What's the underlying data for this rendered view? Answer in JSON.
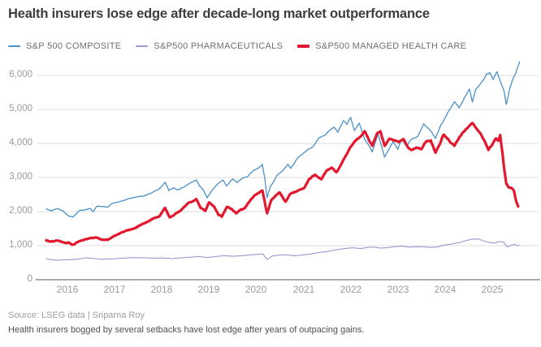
{
  "title": "Health insurers lose edge after decade-long market outperformance",
  "source": "Source: LSEG data | Sriparna Roy",
  "caption": "Health insurers bogged by several setbacks have lost edge after years of outpacing gains.",
  "colors": {
    "composite": "#4a90c9",
    "pharmaceuticals": "#9e94d2",
    "managed_health_care": "#e2192e",
    "gridline": "#dedede",
    "axis_line": "#a9a9a9",
    "title_text": "#3d3d3d",
    "legend_text": "#6f6f6f",
    "tick_text": "#9a9a9a"
  },
  "legend": [
    {
      "label": "S&P 500 COMPOSITE",
      "color": "#4a90c9",
      "thick": false
    },
    {
      "label": "S&P500 PHARMACEUTICALS",
      "color": "#9e94d2",
      "thick": false
    },
    {
      "label": "S&P500 MANAGED HEALTH CARE",
      "color": "#e2192e",
      "thick": true
    }
  ],
  "chart_data": {
    "type": "line",
    "title": "Health insurers lose edge after decade-long market outperformance",
    "xlabel": "",
    "ylabel": "",
    "grid": true,
    "legend_position": "top",
    "x_axis": {
      "tick_years": [
        2016,
        2017,
        2018,
        2019,
        2020,
        2021,
        2022,
        2023,
        2024,
        2025
      ],
      "tick_labels": [
        "2016",
        "2017",
        "2018",
        "2019",
        "2020",
        "2021",
        "2022",
        "2023",
        "2024",
        "2025"
      ],
      "range": [
        2015.45,
        2025.95
      ]
    },
    "y_axis": {
      "tick_values": [
        0,
        1000,
        2000,
        3000,
        4000,
        5000,
        6000
      ],
      "tick_labels": [
        "0",
        "1,000",
        "2,000",
        "3,000",
        "4,000",
        "5,000",
        "6,000"
      ],
      "range": [
        0,
        6550
      ]
    },
    "series": [
      {
        "name": "S&P 500 COMPOSITE",
        "color": "#4a90c9",
        "width": 1.3,
        "jitter": 22,
        "points": [
          [
            2015.55,
            2080
          ],
          [
            2015.65,
            2020
          ],
          [
            2015.78,
            2090
          ],
          [
            2015.9,
            2030
          ],
          [
            2016.02,
            1880
          ],
          [
            2016.12,
            1840
          ],
          [
            2016.25,
            2030
          ],
          [
            2016.4,
            2070
          ],
          [
            2016.48,
            2090
          ],
          [
            2016.55,
            2000
          ],
          [
            2016.63,
            2160
          ],
          [
            2016.75,
            2150
          ],
          [
            2016.85,
            2130
          ],
          [
            2016.95,
            2240
          ],
          [
            2017.1,
            2290
          ],
          [
            2017.3,
            2380
          ],
          [
            2017.5,
            2440
          ],
          [
            2017.65,
            2470
          ],
          [
            2017.8,
            2560
          ],
          [
            2017.95,
            2670
          ],
          [
            2018.07,
            2870
          ],
          [
            2018.15,
            2620
          ],
          [
            2018.25,
            2700
          ],
          [
            2018.35,
            2640
          ],
          [
            2018.5,
            2750
          ],
          [
            2018.62,
            2850
          ],
          [
            2018.73,
            2930
          ],
          [
            2018.8,
            2750
          ],
          [
            2018.88,
            2630
          ],
          [
            2018.96,
            2400
          ],
          [
            2019.05,
            2600
          ],
          [
            2019.18,
            2810
          ],
          [
            2019.3,
            2930
          ],
          [
            2019.37,
            2750
          ],
          [
            2019.5,
            2960
          ],
          [
            2019.6,
            2850
          ],
          [
            2019.7,
            2980
          ],
          [
            2019.82,
            3030
          ],
          [
            2019.95,
            3220
          ],
          [
            2020.05,
            3280
          ],
          [
            2020.13,
            3390
          ],
          [
            2020.18,
            2990
          ],
          [
            2020.23,
            2410
          ],
          [
            2020.3,
            2750
          ],
          [
            2020.38,
            2900
          ],
          [
            2020.45,
            3080
          ],
          [
            2020.55,
            3180
          ],
          [
            2020.67,
            3390
          ],
          [
            2020.73,
            3270
          ],
          [
            2020.8,
            3400
          ],
          [
            2020.88,
            3580
          ],
          [
            2021.0,
            3720
          ],
          [
            2021.1,
            3830
          ],
          [
            2021.2,
            3900
          ],
          [
            2021.33,
            4160
          ],
          [
            2021.45,
            4230
          ],
          [
            2021.55,
            4390
          ],
          [
            2021.65,
            4480
          ],
          [
            2021.73,
            4330
          ],
          [
            2021.85,
            4670
          ],
          [
            2021.92,
            4560
          ],
          [
            2022.0,
            4770
          ],
          [
            2022.08,
            4380
          ],
          [
            2022.18,
            4600
          ],
          [
            2022.3,
            4120
          ],
          [
            2022.4,
            3920
          ],
          [
            2022.46,
            3750
          ],
          [
            2022.58,
            4280
          ],
          [
            2022.72,
            3600
          ],
          [
            2022.82,
            3850
          ],
          [
            2022.9,
            4060
          ],
          [
            2023.0,
            3830
          ],
          [
            2023.08,
            4130
          ],
          [
            2023.18,
            3920
          ],
          [
            2023.3,
            4140
          ],
          [
            2023.42,
            4200
          ],
          [
            2023.55,
            4580
          ],
          [
            2023.68,
            4400
          ],
          [
            2023.8,
            4150
          ],
          [
            2023.9,
            4510
          ],
          [
            2024.0,
            4740
          ],
          [
            2024.1,
            5000
          ],
          [
            2024.2,
            5230
          ],
          [
            2024.3,
            5050
          ],
          [
            2024.42,
            5360
          ],
          [
            2024.52,
            5600
          ],
          [
            2024.58,
            5220
          ],
          [
            2024.65,
            5580
          ],
          [
            2024.72,
            5700
          ],
          [
            2024.8,
            5840
          ],
          [
            2024.88,
            6040
          ],
          [
            2024.95,
            6080
          ],
          [
            2025.02,
            5880
          ],
          [
            2025.1,
            6110
          ],
          [
            2025.18,
            5800
          ],
          [
            2025.25,
            5550
          ],
          [
            2025.3,
            5150
          ],
          [
            2025.38,
            5650
          ],
          [
            2025.45,
            5940
          ],
          [
            2025.5,
            6060
          ],
          [
            2025.55,
            6280
          ],
          [
            2025.58,
            6400
          ]
        ]
      },
      {
        "name": "S&P500 PHARMACEUTICALS",
        "color": "#9e94d2",
        "width": 1.1,
        "jitter": 7,
        "points": [
          [
            2015.55,
            620
          ],
          [
            2015.68,
            580
          ],
          [
            2015.8,
            575
          ],
          [
            2015.95,
            585
          ],
          [
            2016.1,
            590
          ],
          [
            2016.25,
            610
          ],
          [
            2016.4,
            645
          ],
          [
            2016.55,
            625
          ],
          [
            2016.7,
            600
          ],
          [
            2016.85,
            605
          ],
          [
            2017.0,
            615
          ],
          [
            2017.2,
            635
          ],
          [
            2017.4,
            650
          ],
          [
            2017.6,
            645
          ],
          [
            2017.8,
            630
          ],
          [
            2018.0,
            640
          ],
          [
            2018.2,
            620
          ],
          [
            2018.4,
            640
          ],
          [
            2018.6,
            660
          ],
          [
            2018.8,
            685
          ],
          [
            2018.95,
            650
          ],
          [
            2019.1,
            670
          ],
          [
            2019.3,
            705
          ],
          [
            2019.5,
            690
          ],
          [
            2019.7,
            705
          ],
          [
            2019.9,
            730
          ],
          [
            2020.05,
            745
          ],
          [
            2020.14,
            760
          ],
          [
            2020.23,
            590
          ],
          [
            2020.35,
            700
          ],
          [
            2020.5,
            725
          ],
          [
            2020.65,
            730
          ],
          [
            2020.8,
            705
          ],
          [
            2020.95,
            720
          ],
          [
            2021.1,
            745
          ],
          [
            2021.3,
            790
          ],
          [
            2021.5,
            830
          ],
          [
            2021.7,
            880
          ],
          [
            2021.9,
            920
          ],
          [
            2022.05,
            940
          ],
          [
            2022.2,
            915
          ],
          [
            2022.35,
            945
          ],
          [
            2022.5,
            955
          ],
          [
            2022.65,
            930
          ],
          [
            2022.8,
            945
          ],
          [
            2022.95,
            975
          ],
          [
            2023.1,
            985
          ],
          [
            2023.25,
            955
          ],
          [
            2023.4,
            970
          ],
          [
            2023.55,
            965
          ],
          [
            2023.7,
            945
          ],
          [
            2023.85,
            965
          ],
          [
            2024.0,
            1020
          ],
          [
            2024.15,
            1050
          ],
          [
            2024.3,
            1090
          ],
          [
            2024.45,
            1150
          ],
          [
            2024.58,
            1190
          ],
          [
            2024.7,
            1200
          ],
          [
            2024.82,
            1140
          ],
          [
            2024.95,
            1090
          ],
          [
            2025.05,
            1080
          ],
          [
            2025.15,
            1120
          ],
          [
            2025.25,
            1090
          ],
          [
            2025.32,
            960
          ],
          [
            2025.4,
            1010
          ],
          [
            2025.47,
            1045
          ],
          [
            2025.52,
            1000
          ],
          [
            2025.57,
            1020
          ]
        ]
      },
      {
        "name": "S&P500 MANAGED HEALTH CARE",
        "color": "#e2192e",
        "width": 3.2,
        "jitter": 26,
        "points": [
          [
            2015.55,
            1160
          ],
          [
            2015.65,
            1120
          ],
          [
            2015.78,
            1150
          ],
          [
            2015.9,
            1100
          ],
          [
            2016.05,
            1080
          ],
          [
            2016.12,
            1030
          ],
          [
            2016.25,
            1130
          ],
          [
            2016.38,
            1190
          ],
          [
            2016.5,
            1230
          ],
          [
            2016.62,
            1240
          ],
          [
            2016.72,
            1180
          ],
          [
            2016.85,
            1170
          ],
          [
            2016.95,
            1250
          ],
          [
            2017.1,
            1350
          ],
          [
            2017.25,
            1440
          ],
          [
            2017.4,
            1500
          ],
          [
            2017.55,
            1600
          ],
          [
            2017.7,
            1710
          ],
          [
            2017.85,
            1820
          ],
          [
            2017.95,
            1870
          ],
          [
            2018.07,
            2110
          ],
          [
            2018.17,
            1830
          ],
          [
            2018.3,
            1950
          ],
          [
            2018.42,
            2060
          ],
          [
            2018.55,
            2240
          ],
          [
            2018.65,
            2300
          ],
          [
            2018.73,
            2370
          ],
          [
            2018.82,
            2110
          ],
          [
            2018.92,
            2020
          ],
          [
            2019.0,
            2270
          ],
          [
            2019.1,
            2160
          ],
          [
            2019.2,
            1900
          ],
          [
            2019.27,
            1850
          ],
          [
            2019.38,
            2140
          ],
          [
            2019.48,
            2080
          ],
          [
            2019.57,
            1950
          ],
          [
            2019.65,
            2040
          ],
          [
            2019.75,
            2090
          ],
          [
            2019.85,
            2280
          ],
          [
            2019.95,
            2450
          ],
          [
            2020.05,
            2540
          ],
          [
            2020.13,
            2620
          ],
          [
            2020.23,
            1950
          ],
          [
            2020.32,
            2340
          ],
          [
            2020.42,
            2480
          ],
          [
            2020.5,
            2560
          ],
          [
            2020.62,
            2290
          ],
          [
            2020.72,
            2520
          ],
          [
            2020.82,
            2580
          ],
          [
            2020.92,
            2640
          ],
          [
            2021.02,
            2700
          ],
          [
            2021.12,
            2960
          ],
          [
            2021.25,
            3080
          ],
          [
            2021.38,
            2950
          ],
          [
            2021.5,
            3220
          ],
          [
            2021.6,
            3290
          ],
          [
            2021.7,
            3160
          ],
          [
            2021.82,
            3440
          ],
          [
            2021.92,
            3690
          ],
          [
            2022.0,
            3900
          ],
          [
            2022.1,
            4080
          ],
          [
            2022.2,
            4190
          ],
          [
            2022.3,
            4360
          ],
          [
            2022.4,
            4070
          ],
          [
            2022.46,
            3930
          ],
          [
            2022.56,
            4290
          ],
          [
            2022.63,
            4360
          ],
          [
            2022.72,
            3930
          ],
          [
            2022.82,
            4140
          ],
          [
            2022.92,
            4100
          ],
          [
            2023.02,
            4040
          ],
          [
            2023.12,
            4130
          ],
          [
            2023.22,
            3880
          ],
          [
            2023.3,
            3810
          ],
          [
            2023.4,
            3880
          ],
          [
            2023.5,
            3830
          ],
          [
            2023.6,
            4060
          ],
          [
            2023.7,
            4090
          ],
          [
            2023.8,
            3730
          ],
          [
            2023.9,
            4010
          ],
          [
            2023.97,
            4260
          ],
          [
            2024.05,
            4140
          ],
          [
            2024.13,
            4010
          ],
          [
            2024.2,
            3930
          ],
          [
            2024.3,
            4170
          ],
          [
            2024.38,
            4330
          ],
          [
            2024.48,
            4460
          ],
          [
            2024.58,
            4600
          ],
          [
            2024.67,
            4430
          ],
          [
            2024.75,
            4300
          ],
          [
            2024.85,
            4040
          ],
          [
            2024.92,
            3810
          ],
          [
            2025.0,
            3960
          ],
          [
            2025.08,
            4150
          ],
          [
            2025.13,
            4080
          ],
          [
            2025.17,
            4250
          ],
          [
            2025.22,
            3700
          ],
          [
            2025.26,
            3200
          ],
          [
            2025.3,
            2820
          ],
          [
            2025.36,
            2700
          ],
          [
            2025.42,
            2680
          ],
          [
            2025.46,
            2620
          ],
          [
            2025.5,
            2340
          ],
          [
            2025.55,
            2150
          ]
        ]
      }
    ]
  }
}
